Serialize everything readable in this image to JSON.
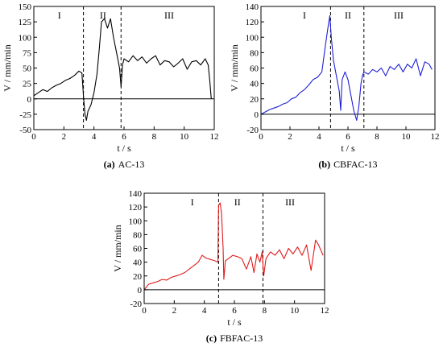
{
  "chart_data": [
    {
      "type": "line",
      "caption": "(a) AC-13",
      "caption_letter": "(a)",
      "caption_name": "AC-13",
      "xlabel": "t / s",
      "ylabel": "V / mm/min",
      "xlim": [
        0,
        12
      ],
      "ylim": [
        -50,
        150
      ],
      "xticks": [
        0,
        2,
        4,
        6,
        8,
        10,
        12
      ],
      "yticks": [
        -50,
        -25,
        0,
        25,
        50,
        75,
        100,
        125,
        150
      ],
      "color": "#000000",
      "region_labels": [
        {
          "label": "I",
          "x": 1.7
        },
        {
          "label": "II",
          "x": 4.6
        },
        {
          "label": "III",
          "x": 9.0
        }
      ],
      "dividers": [
        3.3,
        5.8
      ],
      "series": [
        {
          "x": [
            0,
            0.3,
            0.6,
            0.9,
            1.2,
            1.5,
            1.8,
            2.1,
            2.4,
            2.7,
            3.0,
            3.2,
            3.3,
            3.4,
            3.5,
            3.6,
            3.8,
            4.0,
            4.2,
            4.35,
            4.5,
            4.7,
            4.9,
            5.1,
            5.3,
            5.5,
            5.7,
            5.8,
            5.9,
            6.0,
            6.3,
            6.6,
            6.9,
            7.2,
            7.5,
            7.8,
            8.1,
            8.4,
            8.7,
            9.0,
            9.3,
            9.6,
            9.9,
            10.2,
            10.5,
            10.8,
            11.1,
            11.4,
            11.6,
            11.7,
            11.8
          ],
          "y": [
            5,
            10,
            15,
            12,
            18,
            22,
            25,
            30,
            33,
            38,
            45,
            42,
            5,
            -25,
            -35,
            -20,
            -10,
            10,
            40,
            80,
            125,
            130,
            115,
            130,
            100,
            75,
            50,
            20,
            55,
            65,
            60,
            70,
            62,
            68,
            58,
            65,
            70,
            55,
            62,
            60,
            52,
            58,
            65,
            48,
            60,
            62,
            55,
            65,
            55,
            30,
            0
          ]
        }
      ]
    },
    {
      "type": "line",
      "caption": "(b) CBFAC-13",
      "caption_letter": "(b)",
      "caption_name": "CBFAC-13",
      "xlabel": "t / s",
      "ylabel": "V / mm/min",
      "xlim": [
        0,
        12
      ],
      "ylim": [
        -20,
        140
      ],
      "xticks": [
        0,
        2,
        4,
        6,
        8,
        10,
        12
      ],
      "yticks": [
        -20,
        0,
        20,
        40,
        60,
        80,
        100,
        120,
        140
      ],
      "color": "#1f1fd6",
      "region_labels": [
        {
          "label": "I",
          "x": 3.0
        },
        {
          "label": "II",
          "x": 6.0
        },
        {
          "label": "III",
          "x": 9.5
        }
      ],
      "dividers": [
        4.8,
        7.1
      ],
      "series": [
        {
          "x": [
            0,
            0.3,
            0.6,
            0.9,
            1.2,
            1.5,
            1.8,
            2.1,
            2.4,
            2.7,
            3.0,
            3.3,
            3.6,
            3.9,
            4.2,
            4.45,
            4.6,
            4.75,
            4.85,
            5.0,
            5.2,
            5.4,
            5.5,
            5.6,
            5.8,
            6.0,
            6.2,
            6.4,
            6.6,
            6.75,
            6.9,
            7.0,
            7.1,
            7.4,
            7.7,
            8.0,
            8.3,
            8.6,
            8.9,
            9.2,
            9.5,
            9.8,
            10.1,
            10.4,
            10.7,
            11.0,
            11.3,
            11.6,
            11.8
          ],
          "y": [
            0,
            3,
            6,
            8,
            10,
            13,
            15,
            20,
            22,
            28,
            32,
            38,
            45,
            48,
            55,
            90,
            110,
            128,
            100,
            70,
            50,
            30,
            5,
            45,
            55,
            45,
            25,
            5,
            -8,
            10,
            40,
            50,
            55,
            52,
            58,
            55,
            60,
            50,
            62,
            58,
            65,
            55,
            65,
            60,
            72,
            50,
            68,
            65,
            58
          ]
        }
      ]
    },
    {
      "type": "line",
      "caption": "(c) FBFAC-13",
      "caption_letter": "(c)",
      "caption_name": "FBFAC-13",
      "xlabel": "t / s",
      "ylabel": "V / mm/min",
      "xlim": [
        0,
        12
      ],
      "ylim": [
        -20,
        140
      ],
      "xticks": [
        0,
        2,
        4,
        6,
        8,
        10,
        12
      ],
      "yticks": [
        -20,
        0,
        20,
        40,
        60,
        80,
        100,
        120,
        140
      ],
      "color": "#e01b1b",
      "region_labels": [
        {
          "label": "I",
          "x": 3.2
        },
        {
          "label": "II",
          "x": 6.2
        },
        {
          "label": "III",
          "x": 9.7
        }
      ],
      "dividers": [
        4.95,
        7.9
      ],
      "series": [
        {
          "x": [
            0,
            0.3,
            0.6,
            0.9,
            1.2,
            1.5,
            1.8,
            2.1,
            2.4,
            2.7,
            3.0,
            3.3,
            3.6,
            3.85,
            4.1,
            4.4,
            4.7,
            4.9,
            4.95,
            5.05,
            5.15,
            5.25,
            5.3,
            5.4,
            5.6,
            5.9,
            6.2,
            6.5,
            6.8,
            7.1,
            7.3,
            7.5,
            7.7,
            7.85,
            7.95,
            8.1,
            8.4,
            8.7,
            9.0,
            9.3,
            9.6,
            9.9,
            10.2,
            10.5,
            10.8,
            11.1,
            11.4,
            11.6,
            11.9
          ],
          "y": [
            0,
            8,
            10,
            12,
            15,
            14,
            18,
            20,
            22,
            25,
            30,
            35,
            40,
            50,
            46,
            44,
            42,
            40,
            122,
            126,
            110,
            60,
            15,
            42,
            45,
            50,
            48,
            45,
            30,
            48,
            25,
            52,
            40,
            55,
            20,
            45,
            55,
            50,
            58,
            45,
            60,
            52,
            62,
            50,
            65,
            28,
            72,
            65,
            50
          ]
        }
      ]
    }
  ]
}
